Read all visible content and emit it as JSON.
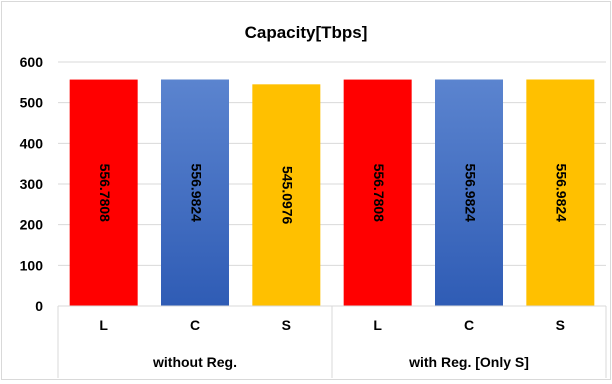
{
  "chart_data": {
    "type": "bar",
    "title": "Capacity[Tbps]",
    "xlabel": "",
    "ylabel": "",
    "ylim": [
      0,
      600
    ],
    "yticks": [
      0,
      100,
      200,
      300,
      400,
      500,
      600
    ],
    "grid": true,
    "legend": "none",
    "groups": [
      {
        "label": "without Reg.",
        "categories": [
          "L",
          "C",
          "S"
        ]
      },
      {
        "label": "with Reg. [Only S]",
        "categories": [
          "L",
          "C",
          "S"
        ]
      }
    ],
    "categories": [
      "L",
      "C",
      "S",
      "L",
      "C",
      "S"
    ],
    "values": [
      556.7808,
      556.9824,
      545.0976,
      556.7808,
      556.9824,
      556.9824
    ],
    "data_labels": [
      "556.7808",
      "556.9824",
      "545.0976",
      "556.7808",
      "556.9824",
      "556.9824"
    ],
    "bar_colors": [
      "#ff0000",
      "#4472c4",
      "#ffc000",
      "#ff0000",
      "#4472c4",
      "#ffc000"
    ]
  }
}
